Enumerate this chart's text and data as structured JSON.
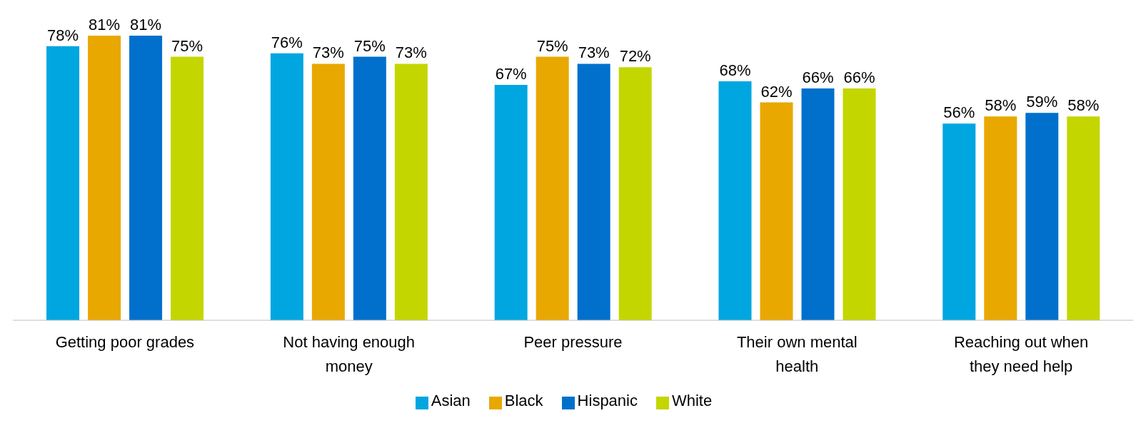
{
  "chart_data": {
    "type": "bar",
    "categories": [
      "Getting poor grades",
      "Not having enough money",
      "Peer pressure",
      "Their own mental health",
      "Reaching out when they need help"
    ],
    "series": [
      {
        "name": "Asian",
        "color": "#00a6e0",
        "values": [
          78,
          76,
          67,
          68,
          56
        ],
        "value_labels": [
          "78%",
          "76%",
          "67%",
          "68%",
          "56%"
        ]
      },
      {
        "name": "Black",
        "color": "#e8a800",
        "values": [
          81,
          73,
          75,
          62,
          58
        ],
        "value_labels": [
          "81%",
          "73%",
          "75%",
          "62%",
          "58%"
        ]
      },
      {
        "name": "Hispanic",
        "color": "#0070cc",
        "values": [
          81,
          75,
          73,
          66,
          59
        ],
        "value_labels": [
          "81%",
          "75%",
          "73%",
          "66%",
          "59%"
        ]
      },
      {
        "name": "White",
        "color": "#c4d600",
        "values": [
          75,
          73,
          72,
          66,
          58
        ],
        "value_labels": [
          "75%",
          "73%",
          "72%",
          "66%",
          "58%"
        ]
      }
    ],
    "legend": "bottom",
    "grid": false
  }
}
